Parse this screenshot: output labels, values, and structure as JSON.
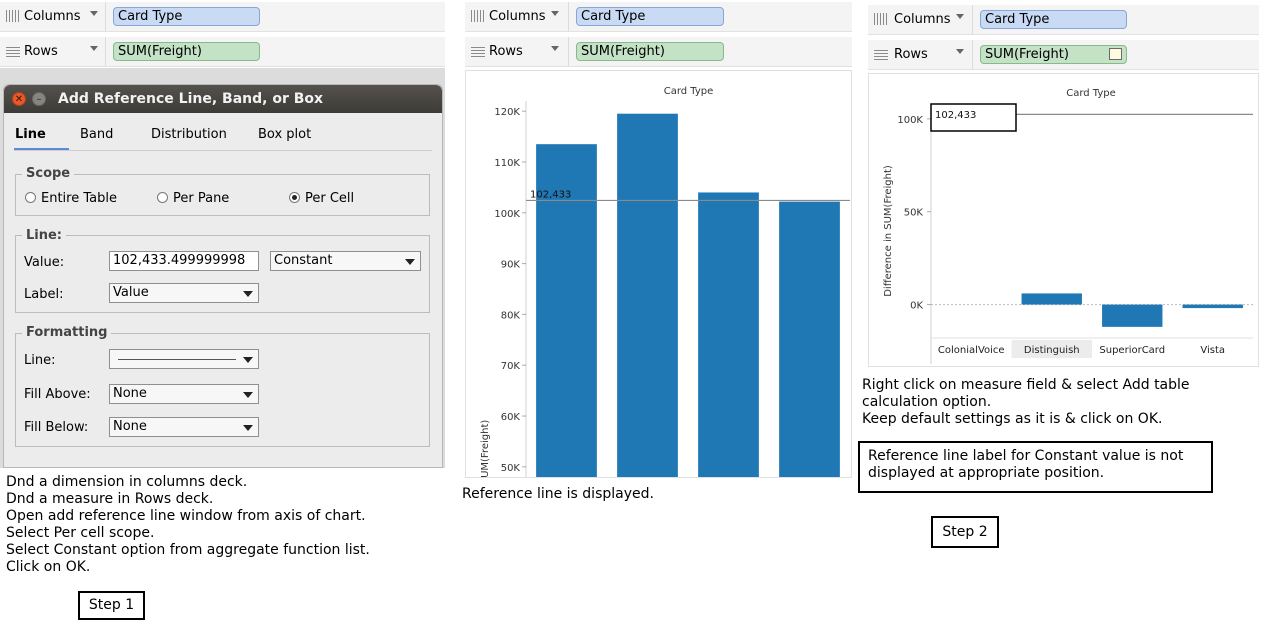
{
  "panel1": {
    "columns_label": "Columns",
    "columns_pill": "Card Type",
    "rows_label": "Rows",
    "rows_pill": "SUM(Freight)",
    "dialog": {
      "title": "Add Reference Line, Band, or Box",
      "tabs": [
        "Line",
        "Band",
        "Distribution",
        "Box plot"
      ],
      "scope_title": "Scope",
      "scope_options": [
        "Entire Table",
        "Per Pane",
        "Per Cell"
      ],
      "scope_selected": "Per Cell",
      "line_title": "Line:",
      "value_label": "Value:",
      "value": "102,433.499999998",
      "aggregation": "Constant",
      "label_label": "Label:",
      "label_value": "Value",
      "formatting_title": "Formatting",
      "fmt_line_label": "Line:",
      "fill_above_label": "Fill Above:",
      "fill_above_value": "None",
      "fill_below_label": "Fill Below:",
      "fill_below_value": "None"
    },
    "instructions": [
      "Dnd a dimension in columns deck.",
      "Dnd a measure in Rows deck.",
      "Open add reference line window from axis of chart.",
      "Select Per cell scope.",
      "Select Constant option from aggregate function list.",
      "Click on OK."
    ],
    "step_label": "Step 1"
  },
  "panel2": {
    "columns_label": "Columns",
    "columns_pill": "Card Type",
    "rows_label": "Rows",
    "rows_pill": "SUM(Freight)",
    "caption": "Reference line is displayed."
  },
  "panel3": {
    "columns_label": "Columns",
    "columns_pill": "Card Type",
    "rows_label": "Rows",
    "rows_pill": "SUM(Freight)",
    "instructions": [
      "Right click on measure field & select Add table",
      "calculation option.",
      "Keep default settings as it is & click on OK."
    ],
    "note": [
      "Reference line label for Constant value is not",
      "displayed at appropriate position."
    ],
    "step_label": "Step 2"
  },
  "chart_data": [
    {
      "type": "bar",
      "title": "Card Type",
      "ylabel": "SUM(Freight)",
      "y_ticks": [
        50000,
        60000,
        70000,
        80000,
        90000,
        100000,
        110000,
        120000
      ],
      "y_tick_labels": [
        "50K",
        "60K",
        "70K",
        "80K",
        "90K",
        "100K",
        "110K",
        "120K"
      ],
      "ylim": [
        48000,
        122000
      ],
      "values": [
        113500,
        119500,
        104000,
        102200
      ],
      "reference_line": {
        "value": 102433,
        "label": "102,433"
      },
      "bar_color": "#1f77b4"
    },
    {
      "type": "bar",
      "title": "Card Type",
      "ylabel": "Difference in SUM(Freight)",
      "categories": [
        "ColonialVoice",
        "Distinguish",
        "SuperiorCard",
        "Vista"
      ],
      "y_ticks": [
        0,
        50000,
        100000
      ],
      "y_tick_labels": [
        "0K",
        "50K",
        "100K"
      ],
      "ylim": [
        -18000,
        108000
      ],
      "values": [
        0,
        6000,
        -12000,
        -1900
      ],
      "reference_line": {
        "value": 102433,
        "label": "102,433"
      },
      "highlight_category": "Distinguish",
      "bar_color": "#1f77b4"
    }
  ]
}
